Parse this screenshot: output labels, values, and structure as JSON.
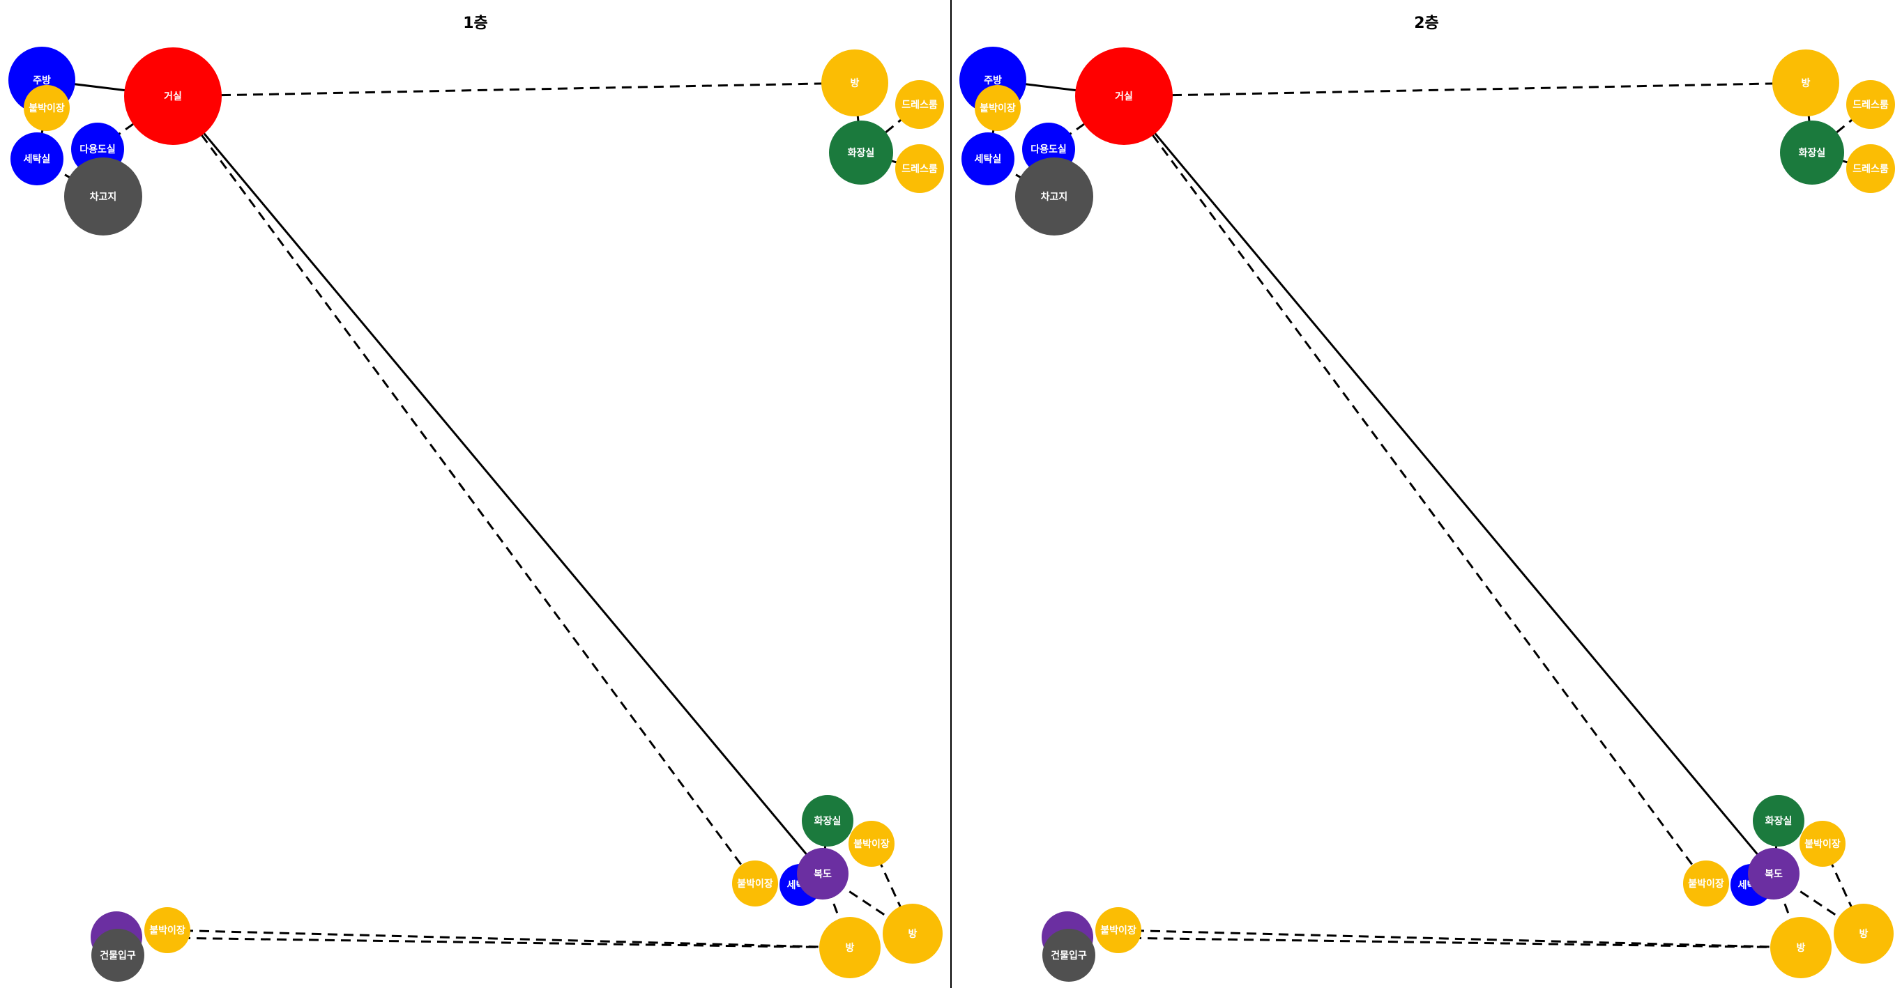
{
  "panels": [
    {
      "title": "1층"
    },
    {
      "title": "2층"
    }
  ],
  "colors": {
    "red": "#ff0000",
    "blue": "#0000ff",
    "yellow": "#fbbd04",
    "green": "#1b7a3d",
    "gray": "#505050",
    "purple": "#6b2fa1",
    "edge": "#000000",
    "divider": "#000000"
  },
  "nodes": [
    {
      "id": "jubang",
      "label": "주방",
      "color": "blue"
    },
    {
      "id": "bultbuk1",
      "label": "붙박이장",
      "color": "yellow"
    },
    {
      "id": "geosil",
      "label": "거실",
      "color": "red"
    },
    {
      "id": "setak1",
      "label": "세탁실",
      "color": "blue"
    },
    {
      "id": "dayong",
      "label": "다용도실",
      "color": "blue"
    },
    {
      "id": "chago",
      "label": "차고지",
      "color": "gray"
    },
    {
      "id": "bang1",
      "label": "방",
      "color": "yellow"
    },
    {
      "id": "dress1",
      "label": "드레스룸",
      "color": "yellow"
    },
    {
      "id": "hwajang1",
      "label": "화장실",
      "color": "green"
    },
    {
      "id": "dress2",
      "label": "드레스룸",
      "color": "yellow"
    },
    {
      "id": "hwajang2",
      "label": "화장실",
      "color": "green"
    },
    {
      "id": "bultbuk2",
      "label": "붙박이장",
      "color": "yellow"
    },
    {
      "id": "bultbuk3",
      "label": "붙박이장",
      "color": "yellow"
    },
    {
      "id": "setak2",
      "label": "세탁실",
      "color": "blue"
    },
    {
      "id": "bokdo",
      "label": "복도",
      "color": "purple"
    },
    {
      "id": "bang2",
      "label": "방",
      "color": "yellow"
    },
    {
      "id": "bang3",
      "label": "방",
      "color": "yellow"
    },
    {
      "id": "entrance_p",
      "label": "",
      "color": "purple"
    },
    {
      "id": "bultbuk4",
      "label": "붙박이장",
      "color": "yellow"
    },
    {
      "id": "entrance",
      "label": "건물입구",
      "color": "gray"
    }
  ],
  "edges": [
    {
      "from": "jubang",
      "to": "geosil",
      "style": "solid"
    },
    {
      "from": "geosil",
      "to": "bang1",
      "style": "dashed"
    },
    {
      "from": "geosil",
      "to": "dayong",
      "style": "dashed"
    },
    {
      "from": "setak1",
      "to": "chago",
      "style": "dashed"
    },
    {
      "from": "bultbuk1",
      "to": "setak1",
      "style": "solid"
    },
    {
      "from": "bang1",
      "to": "hwajang1",
      "style": "solid"
    },
    {
      "from": "hwajang1",
      "to": "dress1",
      "style": "dashed"
    },
    {
      "from": "hwajang1",
      "to": "dress2",
      "style": "dashed"
    },
    {
      "from": "geosil",
      "to": "bokdo",
      "style": "solid"
    },
    {
      "from": "geosil",
      "to": "bultbuk3",
      "style": "dashed"
    },
    {
      "from": "bokdo",
      "to": "hwajang2",
      "style": "solid"
    },
    {
      "from": "bokdo",
      "to": "bang2",
      "style": "dashed"
    },
    {
      "from": "bokdo",
      "to": "bang3",
      "style": "dashed"
    },
    {
      "from": "bultbuk2",
      "to": "bang3",
      "style": "dashed"
    },
    {
      "from": "bultbuk4",
      "to": "bang2",
      "style": "dashed"
    },
    {
      "from": "entrance_p",
      "to": "bang2",
      "style": "dashed"
    }
  ]
}
